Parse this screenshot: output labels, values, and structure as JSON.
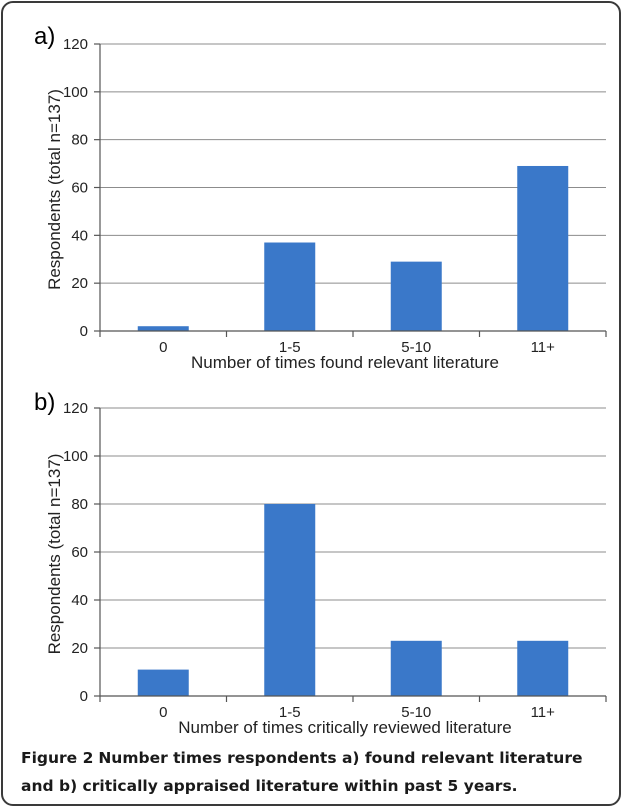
{
  "figure": {
    "caption_lead": "Figure 2",
    "caption_text": "Number times respondents a) found relevant literature and b) critically appraised literature within past 5 years."
  },
  "colors": {
    "bar": "#3a78c9",
    "grid": "#8c8c8c",
    "axis": "#555555"
  },
  "chart_data": [
    {
      "type": "bar",
      "panel_label": "a)",
      "categories": [
        "0",
        "1-5",
        "5-10",
        "11+"
      ],
      "values": [
        2,
        37,
        29,
        69
      ],
      "xlabel": "Number of times found relevant literature",
      "ylabel": "Respondents (total n=137)",
      "ylim": [
        0,
        120
      ],
      "yticks": [
        0,
        20,
        40,
        60,
        80,
        100,
        120
      ],
      "grid": true
    },
    {
      "type": "bar",
      "panel_label": "b)",
      "categories": [
        "0",
        "1-5",
        "5-10",
        "11+"
      ],
      "values": [
        11,
        80,
        23,
        23
      ],
      "xlabel": "Number of times critically reviewed literature",
      "ylabel": "Respondents (total n=137)",
      "ylim": [
        0,
        120
      ],
      "yticks": [
        0,
        20,
        40,
        60,
        80,
        100,
        120
      ],
      "grid": true
    }
  ]
}
